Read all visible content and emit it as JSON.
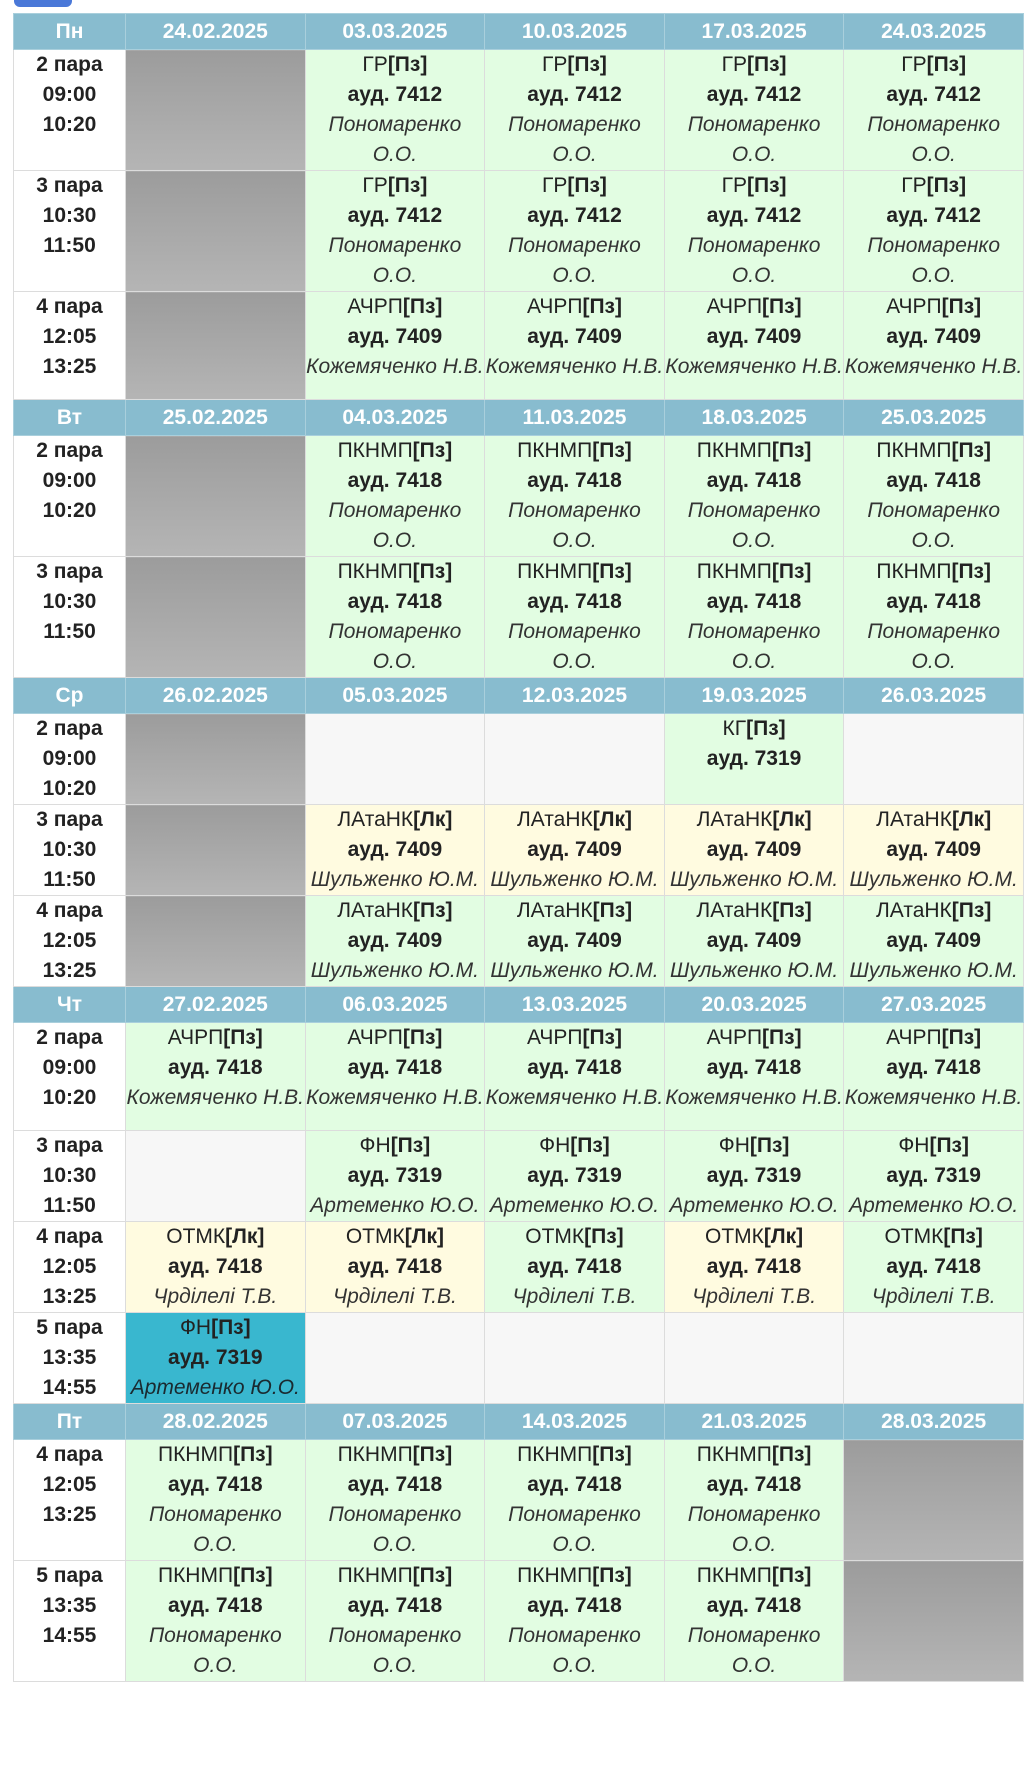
{
  "days": [
    {
      "name": "Пн",
      "dates": [
        "24.02.2025",
        "03.03.2025",
        "10.03.2025",
        "17.03.2025",
        "24.03.2025"
      ],
      "rows": [
        {
          "num": "2 пара",
          "start": "09:00",
          "end": "10:20",
          "h": 108,
          "cells": [
            {
              "kind": "off"
            },
            {
              "kind": "pz",
              "subject": "ГР",
              "ltype": "[Пз]",
              "room": "ауд. 7412",
              "teacher": "Пономаренко О.О."
            },
            {
              "kind": "pz",
              "subject": "ГР",
              "ltype": "[Пз]",
              "room": "ауд. 7412",
              "teacher": "Пономаренко О.О."
            },
            {
              "kind": "pz",
              "subject": "ГР",
              "ltype": "[Пз]",
              "room": "ауд. 7412",
              "teacher": "Пономаренко О.О."
            },
            {
              "kind": "pz",
              "subject": "ГР",
              "ltype": "[Пз]",
              "room": "ауд. 7412",
              "teacher": "Пономаренко О.О."
            }
          ]
        },
        {
          "num": "3 пара",
          "start": "10:30",
          "end": "11:50",
          "h": 108,
          "cells": [
            {
              "kind": "off"
            },
            {
              "kind": "pz",
              "subject": "ГР",
              "ltype": "[Пз]",
              "room": "ауд. 7412",
              "teacher": "Пономаренко О.О."
            },
            {
              "kind": "pz",
              "subject": "ГР",
              "ltype": "[Пз]",
              "room": "ауд. 7412",
              "teacher": "Пономаренко О.О."
            },
            {
              "kind": "pz",
              "subject": "ГР",
              "ltype": "[Пз]",
              "room": "ауд. 7412",
              "teacher": "Пономаренко О.О."
            },
            {
              "kind": "pz",
              "subject": "ГР",
              "ltype": "[Пз]",
              "room": "ауд. 7412",
              "teacher": "Пономаренко О.О."
            }
          ]
        },
        {
          "num": "4 пара",
          "start": "12:05",
          "end": "13:25",
          "h": 108,
          "cells": [
            {
              "kind": "off"
            },
            {
              "kind": "pz",
              "subject": "АЧРП",
              "ltype": "[Пз]",
              "room": "ауд. 7409",
              "teacher": "Кожемяченко Н.В."
            },
            {
              "kind": "pz",
              "subject": "АЧРП",
              "ltype": "[Пз]",
              "room": "ауд. 7409",
              "teacher": "Кожемяченко Н.В."
            },
            {
              "kind": "pz",
              "subject": "АЧРП",
              "ltype": "[Пз]",
              "room": "ауд. 7409",
              "teacher": "Кожемяченко Н.В."
            },
            {
              "kind": "pz",
              "subject": "АЧРП",
              "ltype": "[Пз]",
              "room": "ауд. 7409",
              "teacher": "Кожемяченко Н.В."
            }
          ]
        }
      ]
    },
    {
      "name": "Вт",
      "dates": [
        "25.02.2025",
        "04.03.2025",
        "11.03.2025",
        "18.03.2025",
        "25.03.2025"
      ],
      "rows": [
        {
          "num": "2 пара",
          "start": "09:00",
          "end": "10:20",
          "h": 108,
          "cells": [
            {
              "kind": "off"
            },
            {
              "kind": "pz",
              "subject": "ПКНМП",
              "ltype": "[Пз]",
              "room": "ауд. 7418",
              "teacher": "Пономаренко О.О."
            },
            {
              "kind": "pz",
              "subject": "ПКНМП",
              "ltype": "[Пз]",
              "room": "ауд. 7418",
              "teacher": "Пономаренко О.О."
            },
            {
              "kind": "pz",
              "subject": "ПКНМП",
              "ltype": "[Пз]",
              "room": "ауд. 7418",
              "teacher": "Пономаренко О.О."
            },
            {
              "kind": "pz",
              "subject": "ПКНМП",
              "ltype": "[Пз]",
              "room": "ауд. 7418",
              "teacher": "Пономаренко О.О."
            }
          ]
        },
        {
          "num": "3 пара",
          "start": "10:30",
          "end": "11:50",
          "h": 108,
          "cells": [
            {
              "kind": "off"
            },
            {
              "kind": "pz",
              "subject": "ПКНМП",
              "ltype": "[Пз]",
              "room": "ауд. 7418",
              "teacher": "Пономаренко О.О."
            },
            {
              "kind": "pz",
              "subject": "ПКНМП",
              "ltype": "[Пз]",
              "room": "ауд. 7418",
              "teacher": "Пономаренко О.О."
            },
            {
              "kind": "pz",
              "subject": "ПКНМП",
              "ltype": "[Пз]",
              "room": "ауд. 7418",
              "teacher": "Пономаренко О.О."
            },
            {
              "kind": "pz",
              "subject": "ПКНМП",
              "ltype": "[Пз]",
              "room": "ауд. 7418",
              "teacher": "Пономаренко О.О."
            }
          ]
        }
      ]
    },
    {
      "name": "Ср",
      "dates": [
        "26.02.2025",
        "05.03.2025",
        "12.03.2025",
        "19.03.2025",
        "26.03.2025"
      ],
      "rows": [
        {
          "num": "2 пара",
          "start": "09:00",
          "end": "10:20",
          "h": 86,
          "cells": [
            {
              "kind": "off"
            },
            {
              "kind": "empty"
            },
            {
              "kind": "empty"
            },
            {
              "kind": "pz",
              "subject": "КГ",
              "ltype": "[Пз]",
              "room": "ауд. 7319",
              "teacher": ""
            },
            {
              "kind": "empty"
            }
          ]
        },
        {
          "num": "3 пара",
          "start": "10:30",
          "end": "11:50",
          "h": 86,
          "cells": [
            {
              "kind": "off"
            },
            {
              "kind": "lk",
              "subject": "ЛАтаНК",
              "ltype": "[Лк]",
              "room": "ауд. 7409",
              "teacher": "Шульженко Ю.М."
            },
            {
              "kind": "lk",
              "subject": "ЛАтаНК",
              "ltype": "[Лк]",
              "room": "ауд. 7409",
              "teacher": "Шульженко Ю.М."
            },
            {
              "kind": "lk",
              "subject": "ЛАтаНК",
              "ltype": "[Лк]",
              "room": "ауд. 7409",
              "teacher": "Шульженко Ю.М."
            },
            {
              "kind": "lk",
              "subject": "ЛАтаНК",
              "ltype": "[Лк]",
              "room": "ауд. 7409",
              "teacher": "Шульженко Ю.М."
            }
          ]
        },
        {
          "num": "4 пара",
          "start": "12:05",
          "end": "13:25",
          "h": 86,
          "cells": [
            {
              "kind": "off"
            },
            {
              "kind": "pz",
              "subject": "ЛАтаНК",
              "ltype": "[Пз]",
              "room": "ауд. 7409",
              "teacher": "Шульженко Ю.М."
            },
            {
              "kind": "pz",
              "subject": "ЛАтаНК",
              "ltype": "[Пз]",
              "room": "ауд. 7409",
              "teacher": "Шульженко Ю.М."
            },
            {
              "kind": "pz",
              "subject": "ЛАтаНК",
              "ltype": "[Пз]",
              "room": "ауд. 7409",
              "teacher": "Шульженко Ю.М."
            },
            {
              "kind": "pz",
              "subject": "ЛАтаНК",
              "ltype": "[Пз]",
              "room": "ауд. 7409",
              "teacher": "Шульженко Ю.М."
            }
          ]
        }
      ]
    },
    {
      "name": "Чт",
      "dates": [
        "27.02.2025",
        "06.03.2025",
        "13.03.2025",
        "20.03.2025",
        "27.03.2025"
      ],
      "rows": [
        {
          "num": "2 пара",
          "start": "09:00",
          "end": "10:20",
          "h": 108,
          "cells": [
            {
              "kind": "pz",
              "subject": "АЧРП",
              "ltype": "[Пз]",
              "room": "ауд. 7418",
              "teacher": "Кожемяченко Н.В."
            },
            {
              "kind": "pz",
              "subject": "АЧРП",
              "ltype": "[Пз]",
              "room": "ауд. 7418",
              "teacher": "Кожемяченко Н.В."
            },
            {
              "kind": "pz",
              "subject": "АЧРП",
              "ltype": "[Пз]",
              "room": "ауд. 7418",
              "teacher": "Кожемяченко Н.В."
            },
            {
              "kind": "pz",
              "subject": "АЧРП",
              "ltype": "[Пз]",
              "room": "ауд. 7418",
              "teacher": "Кожемяченко Н.В."
            },
            {
              "kind": "pz",
              "subject": "АЧРП",
              "ltype": "[Пз]",
              "room": "ауд. 7418",
              "teacher": "Кожемяченко Н.В."
            }
          ]
        },
        {
          "num": "3 пара",
          "start": "10:30",
          "end": "11:50",
          "h": 86,
          "cells": [
            {
              "kind": "empty"
            },
            {
              "kind": "pz",
              "subject": "ФН",
              "ltype": "[Пз]",
              "room": "ауд. 7319",
              "teacher": "Артеменко Ю.О."
            },
            {
              "kind": "pz",
              "subject": "ФН",
              "ltype": "[Пз]",
              "room": "ауд. 7319",
              "teacher": "Артеменко Ю.О."
            },
            {
              "kind": "pz",
              "subject": "ФН",
              "ltype": "[Пз]",
              "room": "ауд. 7319",
              "teacher": "Артеменко Ю.О."
            },
            {
              "kind": "pz",
              "subject": "ФН",
              "ltype": "[Пз]",
              "room": "ауд. 7319",
              "teacher": "Артеменко Ю.О."
            }
          ]
        },
        {
          "num": "4 пара",
          "start": "12:05",
          "end": "13:25",
          "h": 86,
          "cells": [
            {
              "kind": "lk",
              "subject": "ОТМК",
              "ltype": "[Лк]",
              "room": "ауд. 7418",
              "teacher": "Чрділелі Т.В."
            },
            {
              "kind": "lk",
              "subject": "ОТМК",
              "ltype": "[Лк]",
              "room": "ауд. 7418",
              "teacher": "Чрділелі Т.В."
            },
            {
              "kind": "pz",
              "subject": "ОТМК",
              "ltype": "[Пз]",
              "room": "ауд. 7418",
              "teacher": "Чрділелі Т.В."
            },
            {
              "kind": "lk",
              "subject": "ОТМК",
              "ltype": "[Лк]",
              "room": "ауд. 7418",
              "teacher": "Чрділелі Т.В."
            },
            {
              "kind": "pz",
              "subject": "ОТМК",
              "ltype": "[Пз]",
              "room": "ауд. 7418",
              "teacher": "Чрділелі Т.В."
            }
          ]
        },
        {
          "num": "5 пара",
          "start": "13:35",
          "end": "14:55",
          "h": 86,
          "cells": [
            {
              "kind": "hl",
              "subject": "ФН",
              "ltype": "[Пз]",
              "room": "ауд. 7319",
              "teacher": "Артеменко Ю.О."
            },
            {
              "kind": "empty"
            },
            {
              "kind": "empty"
            },
            {
              "kind": "empty"
            },
            {
              "kind": "empty"
            }
          ]
        }
      ]
    },
    {
      "name": "Пт",
      "dates": [
        "28.02.2025",
        "07.03.2025",
        "14.03.2025",
        "21.03.2025",
        "28.03.2025"
      ],
      "rows": [
        {
          "num": "4 пара",
          "start": "12:05",
          "end": "13:25",
          "h": 108,
          "cells": [
            {
              "kind": "pz",
              "subject": "ПКНМП",
              "ltype": "[Пз]",
              "room": "ауд. 7418",
              "teacher": "Пономаренко О.О."
            },
            {
              "kind": "pz",
              "subject": "ПКНМП",
              "ltype": "[Пз]",
              "room": "ауд. 7418",
              "teacher": "Пономаренко О.О."
            },
            {
              "kind": "pz",
              "subject": "ПКНМП",
              "ltype": "[Пз]",
              "room": "ауд. 7418",
              "teacher": "Пономаренко О.О."
            },
            {
              "kind": "pz",
              "subject": "ПКНМП",
              "ltype": "[Пз]",
              "room": "ауд. 7418",
              "teacher": "Пономаренко О.О."
            },
            {
              "kind": "off"
            }
          ]
        },
        {
          "num": "5 пара",
          "start": "13:35",
          "end": "14:55",
          "h": 108,
          "cells": [
            {
              "kind": "pz",
              "subject": "ПКНМП",
              "ltype": "[Пз]",
              "room": "ауд. 7418",
              "teacher": "Пономаренко О.О."
            },
            {
              "kind": "pz",
              "subject": "ПКНМП",
              "ltype": "[Пз]",
              "room": "ауд. 7418",
              "teacher": "Пономаренко О.О."
            },
            {
              "kind": "pz",
              "subject": "ПКНМП",
              "ltype": "[Пз]",
              "room": "ауд. 7418",
              "teacher": "Пономаренко О.О."
            },
            {
              "kind": "pz",
              "subject": "ПКНМП",
              "ltype": "[Пз]",
              "room": "ауд. 7418",
              "teacher": "Пономаренко О.О."
            },
            {
              "kind": "off"
            }
          ]
        }
      ]
    }
  ],
  "colors": {
    "header": "#88bccf",
    "practice": "#e2fde2",
    "lecture": "#fffbe0",
    "empty": "#f7f7f7",
    "highlight": "#39b7cf",
    "unavailable": "#a8a8a8"
  }
}
